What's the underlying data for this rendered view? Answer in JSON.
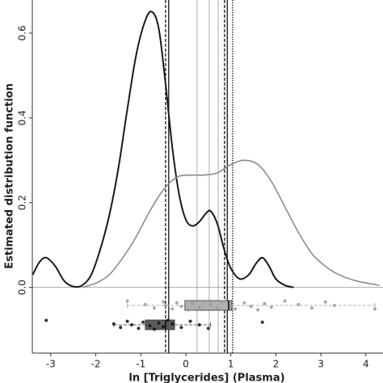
{
  "chart_data": {
    "type": "density",
    "ylabel": "Estimated distribution function",
    "xlabel": "ln [Triglycerides] (Plasma)",
    "xlim": [
      -3.41,
      4.38
    ],
    "ylim": [
      -0.155,
      0.678
    ],
    "xticks": [
      -3,
      -2,
      -1,
      0,
      1,
      2,
      3,
      4
    ],
    "yticks": [
      {
        "value": 0,
        "label": "0.0"
      },
      0.2,
      0.4,
      0.6
    ],
    "series": [
      {
        "color": "#1a1a1a",
        "x": [
          -3.4,
          -3.25,
          -3.1,
          -2.9,
          -2.7,
          -2.5,
          -2.3,
          -2.1,
          -1.9,
          -1.7,
          -1.5,
          -1.3,
          -1.1,
          -0.9,
          -0.75,
          -0.6,
          -0.45,
          -0.3,
          -0.15,
          0,
          0.15,
          0.3,
          0.45,
          0.55,
          0.7,
          0.85,
          1.0,
          1.2,
          1.4,
          1.55,
          1.7,
          1.85,
          2.0,
          2.2,
          2.4
        ],
        "values": [
          0.03,
          0.06,
          0.07,
          0.05,
          0.015,
          0.002,
          0.005,
          0.03,
          0.09,
          0.17,
          0.28,
          0.42,
          0.55,
          0.63,
          0.65,
          0.61,
          0.48,
          0.33,
          0.22,
          0.16,
          0.145,
          0.155,
          0.175,
          0.18,
          0.15,
          0.09,
          0.045,
          0.02,
          0.03,
          0.055,
          0.07,
          0.05,
          0.02,
          0.005,
          0.0
        ]
      },
      {
        "color": "#8c8c8c",
        "x": [
          -2.3,
          -2.0,
          -1.7,
          -1.4,
          -1.1,
          -0.8,
          -0.5,
          -0.2,
          0.1,
          0.4,
          0.7,
          1.0,
          1.3,
          1.6,
          1.9,
          2.2,
          2.5,
          2.8,
          3.1,
          3.4,
          3.8,
          4.3
        ],
        "values": [
          0.0,
          0.01,
          0.03,
          0.07,
          0.12,
          0.18,
          0.23,
          0.26,
          0.265,
          0.265,
          0.27,
          0.29,
          0.3,
          0.29,
          0.25,
          0.19,
          0.13,
          0.08,
          0.05,
          0.03,
          0.015,
          0.005
        ]
      }
    ],
    "vlines": [
      {
        "x": -0.45,
        "style": "dashed",
        "color": "#000000"
      },
      {
        "x": -0.38,
        "style": "solid",
        "color": "#000000"
      },
      {
        "x": 0.25,
        "style": "solid",
        "color": "#9a9a9a"
      },
      {
        "x": 0.52,
        "style": "solid",
        "color": "#9a9a9a"
      },
      {
        "x": 0.72,
        "style": "solid",
        "color": "#9a9a9a"
      },
      {
        "x": 0.86,
        "style": "dashed",
        "color": "#000000"
      },
      {
        "x": 0.92,
        "style": "solid",
        "color": "#000000"
      },
      {
        "x": 1.04,
        "style": "dotted",
        "color": "#000000"
      }
    ],
    "boxes": [
      {
        "color": "#b0b0b0",
        "point_color": "#9a9a9a",
        "whisker_low": -1.3,
        "q1": -0.02,
        "median": 0.95,
        "q3": 1.02,
        "whisker_high": 4.2,
        "points": [
          -1.3,
          -0.9,
          -0.7,
          -0.5,
          -0.45,
          -0.3,
          -0.2,
          -0.1,
          0.05,
          0.15,
          0.3,
          0.4,
          0.55,
          0.7,
          0.8,
          1.0,
          1.1,
          1.3,
          1.45,
          1.6,
          1.75,
          1.9,
          2.2,
          2.5,
          2.8,
          3.1,
          3.3,
          4.2
        ]
      },
      {
        "color": "#5a5a5a",
        "point_color": "#111111",
        "whisker_low": -1.6,
        "q1": -0.9,
        "median": -0.45,
        "q3": -0.25,
        "whisker_high": 0.55,
        "points": [
          -3.1,
          -1.6,
          -1.45,
          -1.3,
          -1.2,
          -1.05,
          -0.95,
          -0.8,
          -0.7,
          -0.6,
          -0.5,
          -0.4,
          -0.3,
          -0.1,
          0.1,
          0.3,
          0.5,
          1.7
        ]
      }
    ]
  }
}
